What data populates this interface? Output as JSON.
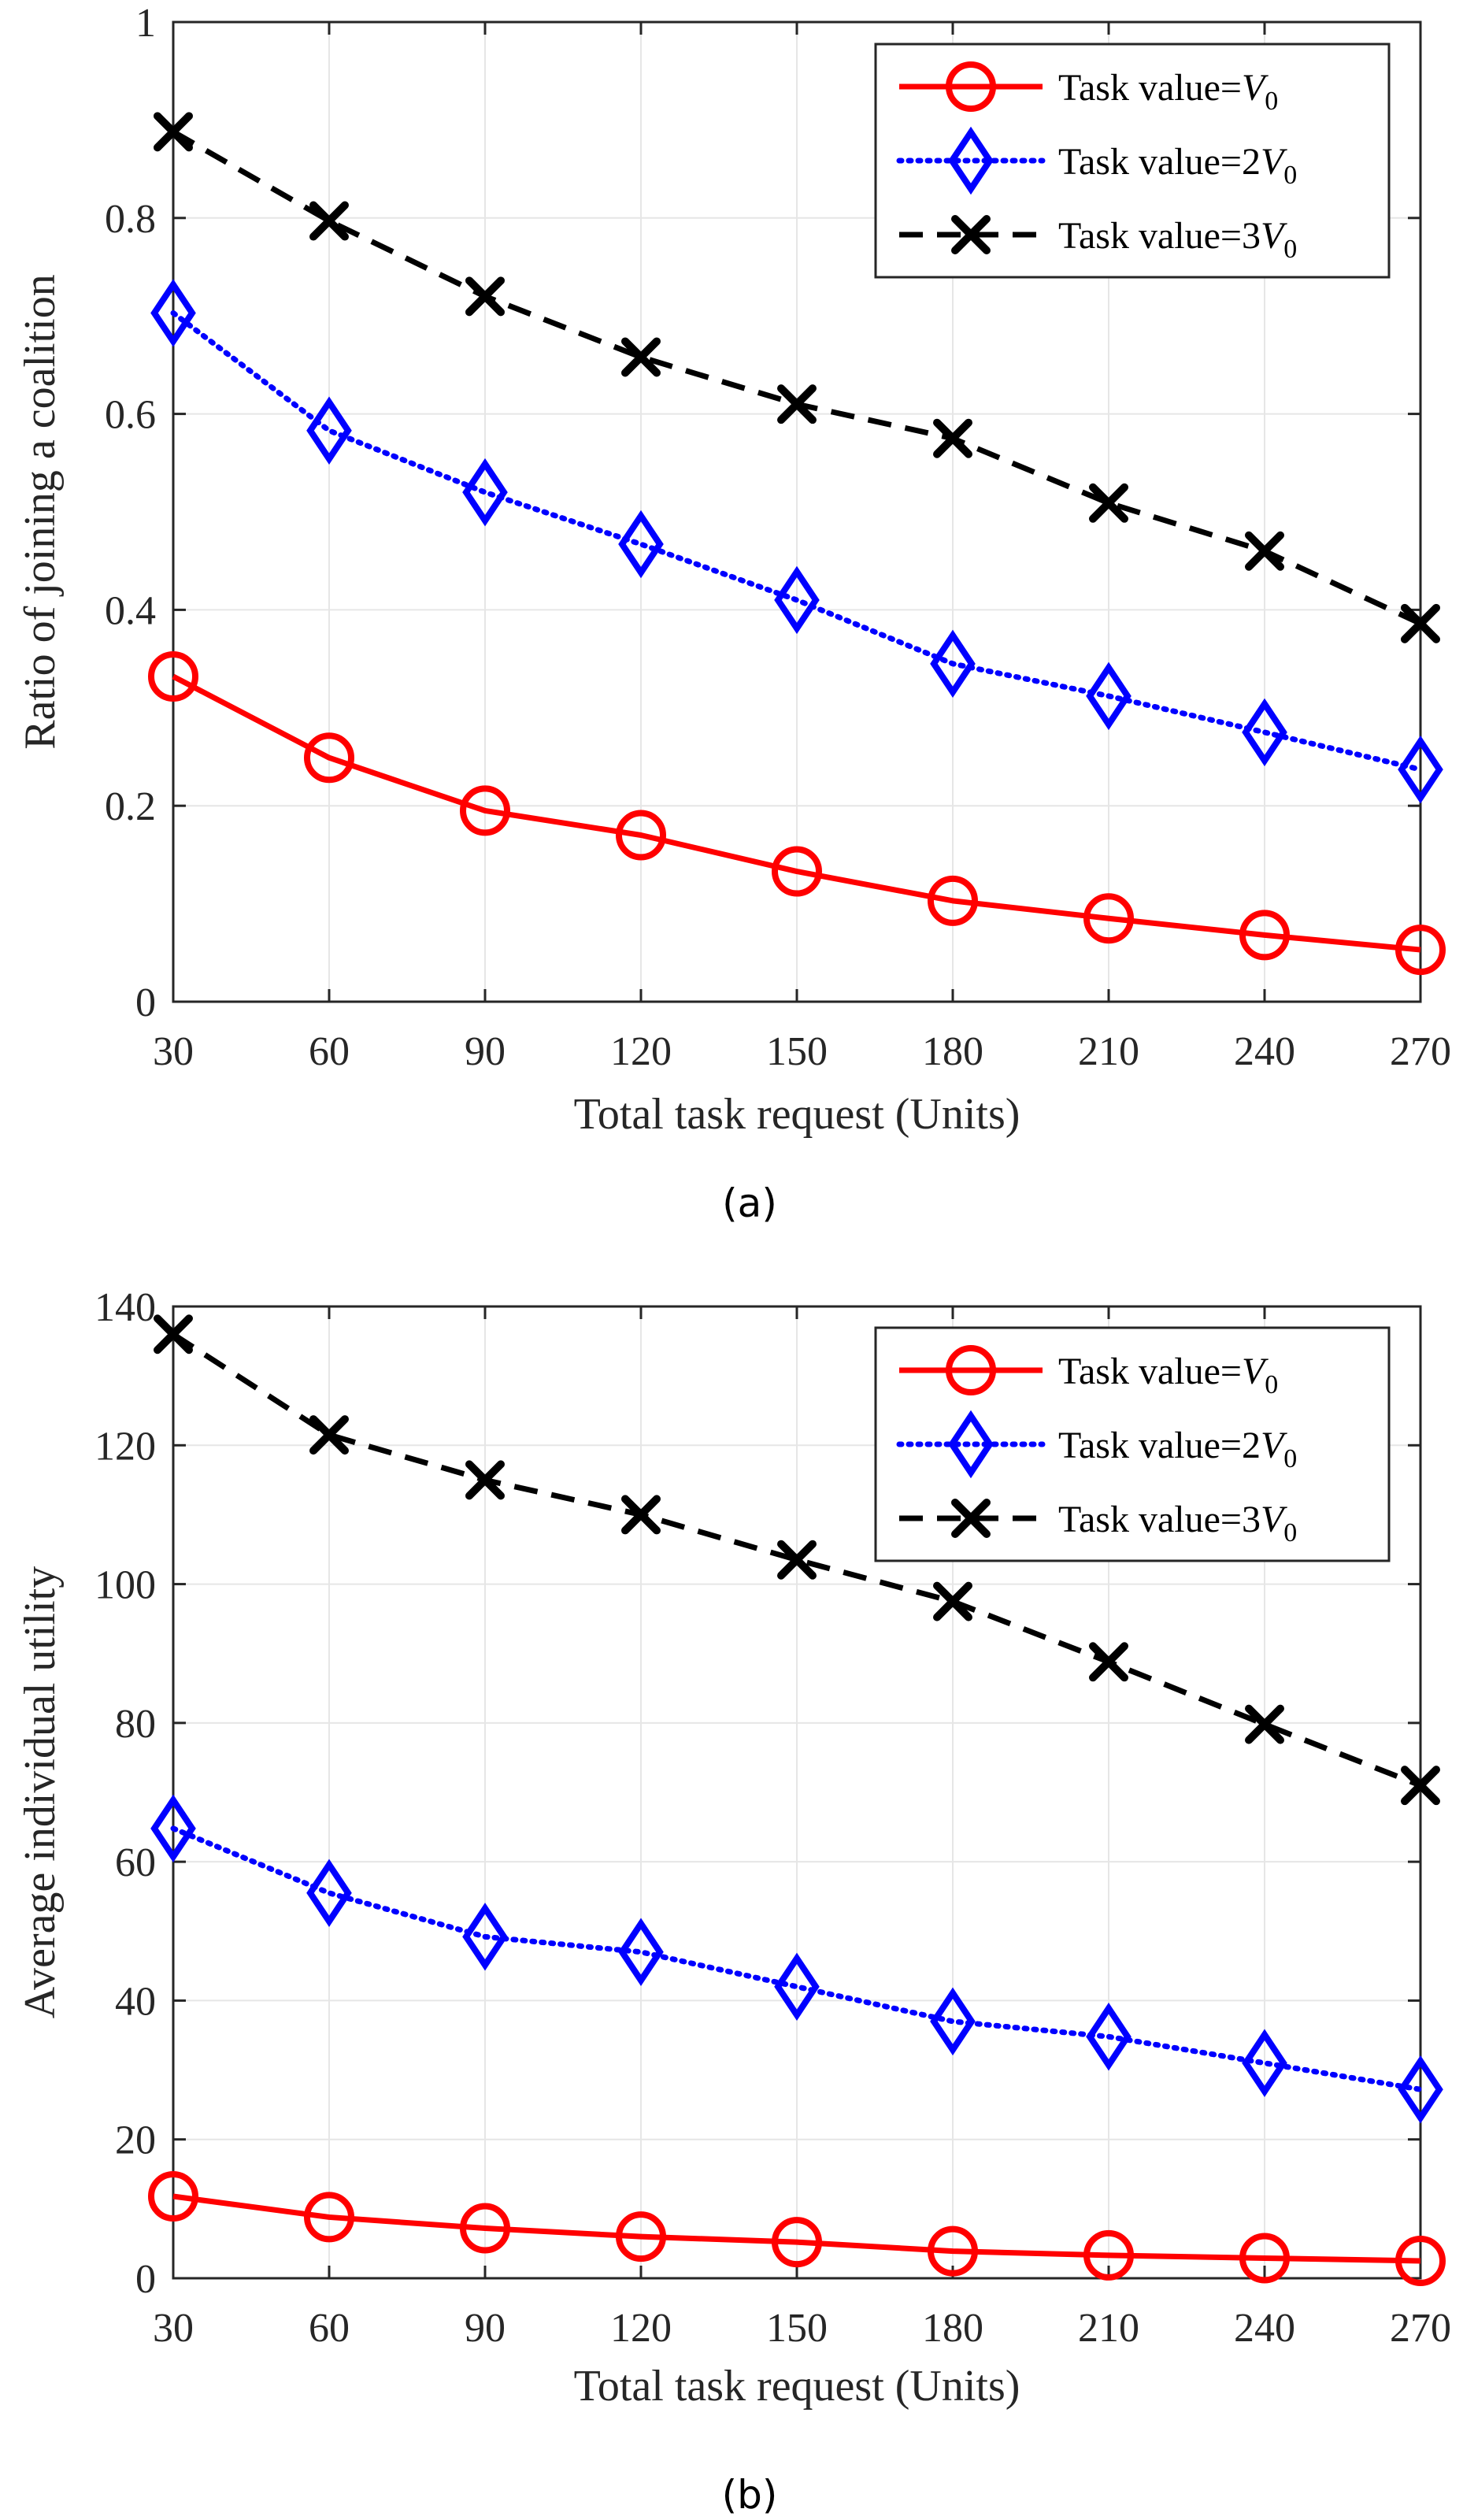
{
  "colors": {
    "series_0": "#ff0000",
    "series_1": "#0000ff",
    "series_2": "#000000",
    "grid": "#e6e6e6",
    "axis": "#262626"
  },
  "chart_data": [
    {
      "type": "line",
      "caption": "(a)",
      "xlabel": "Total task request (Units)",
      "ylabel": "Ratio of joining a coalition",
      "x": [
        30,
        60,
        90,
        120,
        150,
        180,
        210,
        240,
        270
      ],
      "xlim": [
        30,
        270
      ],
      "ylim": [
        0,
        1
      ],
      "xticks": [
        30,
        60,
        90,
        120,
        150,
        180,
        210,
        240,
        270
      ],
      "yticks": [
        0,
        0.2,
        0.4,
        0.6,
        0.8,
        1
      ],
      "ytick_labels": [
        "0",
        "0.2",
        "0.4",
        "0.6",
        "0.8",
        "1"
      ],
      "grid": true,
      "legend_position": "top-right",
      "series": [
        {
          "name_prefix": "Task value=",
          "name_coef": "",
          "name_var": "V",
          "name_sub": "0",
          "marker": "circle",
          "style": "solid",
          "values": [
            0.332,
            0.249,
            0.195,
            0.17,
            0.133,
            0.103,
            0.085,
            0.068,
            0.053
          ]
        },
        {
          "name_prefix": "Task value=",
          "name_coef": "2",
          "name_var": "V",
          "name_sub": "0",
          "marker": "diamond",
          "style": "dotted",
          "values": [
            0.703,
            0.583,
            0.52,
            0.467,
            0.41,
            0.345,
            0.312,
            0.275,
            0.237
          ]
        },
        {
          "name_prefix": "Task value=",
          "name_coef": "3",
          "name_var": "V",
          "name_sub": "0",
          "marker": "x",
          "style": "dashed",
          "values": [
            0.888,
            0.797,
            0.72,
            0.658,
            0.61,
            0.575,
            0.509,
            0.46,
            0.386
          ]
        }
      ]
    },
    {
      "type": "line",
      "caption": "(b)",
      "xlabel": "Total task request (Units)",
      "ylabel": "Average individual utility",
      "x": [
        30,
        60,
        90,
        120,
        150,
        180,
        210,
        240,
        270
      ],
      "xlim": [
        30,
        270
      ],
      "ylim": [
        0,
        140
      ],
      "xticks": [
        30,
        60,
        90,
        120,
        150,
        180,
        210,
        240,
        270
      ],
      "yticks": [
        0,
        20,
        40,
        60,
        80,
        100,
        120,
        140
      ],
      "ytick_labels": [
        "0",
        "20",
        "40",
        "60",
        "80",
        "100",
        "120",
        "140"
      ],
      "grid": true,
      "legend_position": "top-right",
      "series": [
        {
          "name_prefix": "Task value=",
          "name_coef": "",
          "name_var": "V",
          "name_sub": "0",
          "marker": "circle",
          "style": "solid",
          "values": [
            11.8,
            8.8,
            7.2,
            6.0,
            5.2,
            3.9,
            3.3,
            2.9,
            2.5
          ]
        },
        {
          "name_prefix": "Task value=",
          "name_coef": "2",
          "name_var": "V",
          "name_sub": "0",
          "marker": "diamond",
          "style": "dotted",
          "values": [
            64.8,
            55.5,
            49.2,
            47.0,
            42.0,
            37.0,
            34.8,
            31.0,
            27.2
          ]
        },
        {
          "name_prefix": "Task value=",
          "name_coef": "3",
          "name_var": "V",
          "name_sub": "0",
          "marker": "x",
          "style": "dashed",
          "values": [
            136.0,
            121.5,
            115.0,
            110.0,
            103.5,
            97.5,
            88.8,
            79.8,
            71.0
          ]
        }
      ]
    }
  ]
}
